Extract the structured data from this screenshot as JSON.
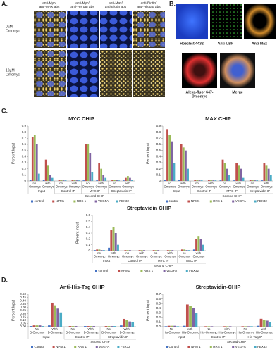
{
  "figure": {
    "panel_labels": [
      "A.",
      "B.",
      "C.",
      "D."
    ],
    "panel_a": {
      "columns": [
        [
          "anti-Myc/",
          "anti-MAX abs"
        ],
        [
          "anti-Myc/",
          "anti-His tag abs"
        ],
        [
          "anti-Max/",
          "anti-Biotin abs"
        ],
        [
          "anti-Biotin/",
          "anti-His tag abs"
        ]
      ],
      "rows": [
        [
          "0µM",
          "Omomyc"
        ],
        [
          "10µM",
          "Omomyc"
        ]
      ]
    },
    "panel_b": {
      "images": [
        [
          "Hoechst 4432"
        ],
        [
          "Anti-UBF"
        ],
        [
          "Anti-Max"
        ],
        [
          "Alexa-fluor 647-",
          "Omomyc"
        ],
        [
          "Merge"
        ]
      ]
    }
  },
  "chart_data": [
    {
      "type": "bar",
      "title": "MYC CHIP",
      "y_label": "Percent Input",
      "categories": [
        "no Omomyc",
        "with Omomyc",
        "no Omomyc",
        "with Omomyc",
        "no Omomyc",
        "with Omomyc",
        "no Omomyc",
        "with Omomyc"
      ],
      "groups": [
        "Input",
        "Control IP",
        "MAX IP",
        "Streptavidin IP"
      ],
      "group_title": "Second CHIP",
      "ylim": [
        0,
        0.9
      ],
      "yticks": [
        0,
        0.1,
        0.2,
        0.3,
        0.4,
        0.5,
        0.6,
        0.7,
        0.8,
        0.9
      ],
      "series": [
        {
          "name": "control",
          "color": "#4472c4",
          "values": [
            0.02,
            0.02,
            0,
            0,
            0.01,
            0.01,
            0,
            0.01
          ]
        },
        {
          "name": "NPM1",
          "color": "#c0504d",
          "values": [
            0.72,
            0.35,
            0.02,
            0.02,
            0.6,
            0.3,
            0.02,
            0.05
          ]
        },
        {
          "name": "RRS 1",
          "color": "#9bbb59",
          "values": [
            0.75,
            0.25,
            0.02,
            0.02,
            0.6,
            0.2,
            0.02,
            0.08
          ]
        },
        {
          "name": "VEGFA",
          "color": "#8064a2",
          "values": [
            0.6,
            0.1,
            0.01,
            0.01,
            0.45,
            0.1,
            0.02,
            0.05
          ]
        },
        {
          "name": "FBX32",
          "color": "#4bacc6",
          "values": [
            0.12,
            0.05,
            0.01,
            0.01,
            0.15,
            0.05,
            0.01,
            0.02
          ]
        }
      ]
    },
    {
      "type": "bar",
      "title": "MAX CHIP",
      "y_label": "Percent Input",
      "categories": [
        "no Omomyc",
        "with Omomyc",
        "no Omomyc",
        "with Omomyc",
        "no Omomyc",
        "with Omomyc",
        "no Omomyc",
        "with Omomyc"
      ],
      "groups": [
        "Input",
        "Control IP",
        "MYC IP",
        "Streptavidin IP"
      ],
      "group_title": "Second CHIP",
      "ylim": [
        0,
        0.9
      ],
      "yticks": [
        0,
        0.1,
        0.2,
        0.3,
        0.4,
        0.5,
        0.6,
        0.7,
        0.8,
        0.9
      ],
      "series": [
        {
          "name": "control",
          "color": "#4472c4",
          "values": [
            0.02,
            0.02,
            0,
            0,
            0.01,
            0.01,
            0,
            0.01
          ]
        },
        {
          "name": "NPM1",
          "color": "#c0504d",
          "values": [
            0.85,
            0.6,
            0.02,
            0.02,
            0.35,
            0.3,
            0.02,
            0.3
          ]
        },
        {
          "name": "RRS 1",
          "color": "#9bbb59",
          "values": [
            0.75,
            0.55,
            0.02,
            0.02,
            0.3,
            0.25,
            0.02,
            0.25
          ]
        },
        {
          "name": "VEGFA",
          "color": "#8064a2",
          "values": [
            0.65,
            0.5,
            0.01,
            0.01,
            0.2,
            0.2,
            0.01,
            0.2
          ]
        },
        {
          "name": "FBX32",
          "color": "#4bacc6",
          "values": [
            0.3,
            0.2,
            0.01,
            0.01,
            0.1,
            0.05,
            0.01,
            0.1
          ]
        }
      ]
    },
    {
      "type": "bar",
      "title": "Streptavidin CHIP",
      "y_label": "Percent Input",
      "categories": [
        "no Omomyc",
        "with Omomyc",
        "no Omomyc",
        "with Omomyc",
        "no Omomyc",
        "with Omomyc",
        "no Omomyc",
        "with Omomyc"
      ],
      "groups": [
        "Input",
        "Control IP",
        "MYC IP",
        "MAX IP"
      ],
      "group_title": "Second CHIP",
      "ylim": [
        0,
        0.6
      ],
      "yticks": [
        0,
        0.1,
        0.2,
        0.3,
        0.4,
        0.5,
        0.6
      ],
      "series": [
        {
          "name": "control",
          "color": "#4472c4",
          "values": [
            0.01,
            0.05,
            0,
            0,
            0,
            0,
            0,
            0.02
          ]
        },
        {
          "name": "NPM1",
          "color": "#c0504d",
          "values": [
            0.02,
            0.35,
            0.01,
            0.01,
            0.01,
            0.01,
            0.02,
            0.2
          ]
        },
        {
          "name": "RRS 1",
          "color": "#9bbb59",
          "values": [
            0.02,
            0.4,
            0.01,
            0.01,
            0.01,
            0.01,
            0.02,
            0.25
          ]
        },
        {
          "name": "VEGFA",
          "color": "#8064a2",
          "values": [
            0.01,
            0.3,
            0.01,
            0.01,
            0.01,
            0.01,
            0.01,
            0.2
          ]
        },
        {
          "name": "FBX32",
          "color": "#4bacc6",
          "values": [
            0.01,
            0.1,
            0,
            0,
            0,
            0,
            0.01,
            0.1
          ]
        }
      ]
    },
    {
      "type": "bar",
      "title": "Anti-His-Tag CHIP",
      "y_label": "Percent Input",
      "categories": [
        "No B-Omomyc",
        "With B-Omomyc",
        "No B-Omomyc",
        "With B-Omomyc",
        "No B-Omomyc",
        "With B-Omomyc"
      ],
      "groups": [
        "Input",
        "Control IP",
        "Streptavidin IP"
      ],
      "group_title": "Second CHIP",
      "ylim": [
        0,
        0.5
      ],
      "yticks": [
        {
          "value": 0,
          "label": "0.00"
        },
        {
          "value": 0.05,
          "label": "0.05"
        },
        {
          "value": 0.1,
          "label": "0.10"
        },
        {
          "value": 0.15,
          "label": "0.15"
        },
        {
          "value": 0.2,
          "label": "0.20"
        },
        {
          "value": 0.25,
          "label": "0.25"
        },
        {
          "value": 0.3,
          "label": "0.30"
        },
        {
          "value": 0.35,
          "label": "0.35"
        },
        {
          "value": 0.4,
          "label": "0.40"
        },
        {
          "value": 0.45,
          "label": "0.45"
        },
        {
          "value": 0.5,
          "label": "0.50"
        }
      ],
      "series": [
        {
          "name": "Control",
          "color": "#4472c4",
          "values": [
            0.01,
            0.02,
            0,
            0.01,
            0,
            0.02
          ]
        },
        {
          "name": "NPM 1",
          "color": "#c0504d",
          "values": [
            0.02,
            0.37,
            0.01,
            0.01,
            0.01,
            0.12
          ]
        },
        {
          "name": "RRS 1",
          "color": "#9bbb59",
          "values": [
            0.02,
            0.33,
            0.01,
            0.01,
            0.01,
            0.1
          ]
        },
        {
          "name": "VEGFA",
          "color": "#8064a2",
          "values": [
            0.02,
            0.28,
            0.01,
            0.01,
            0.01,
            0.08
          ]
        },
        {
          "name": "FBX32",
          "color": "#4bacc6",
          "values": [
            0.01,
            0.22,
            0,
            0,
            0.01,
            0.07
          ]
        }
      ]
    },
    {
      "type": "bar",
      "title": "Streptavidin-CHIP",
      "y_label": "Percent Input",
      "categories": [
        "No His-Omomyc",
        "with His-Omomyc",
        "No His-Omomyc",
        "with His-Omomyc",
        "No His-Omomyc",
        "with His-Omomyc"
      ],
      "groups": [
        "Input",
        "Control IP",
        "His-Tag IP"
      ],
      "group_title": "Second CHIP",
      "ylim": [
        0,
        0.7
      ],
      "yticks": [
        {
          "value": 0,
          "label": "0.0"
        },
        0.1,
        0.2,
        0.3,
        0.4,
        0.5,
        0.6,
        0.7
      ],
      "series": [
        {
          "name": "Control",
          "color": "#4472c4",
          "values": [
            0.01,
            0.02,
            0,
            0,
            0,
            0.02
          ]
        },
        {
          "name": "NPM 1",
          "color": "#c0504d",
          "values": [
            0.02,
            0.48,
            0.01,
            0.01,
            0.01,
            0.17
          ]
        },
        {
          "name": "RRS 1",
          "color": "#9bbb59",
          "values": [
            0.02,
            0.45,
            0.01,
            0.01,
            0.01,
            0.15
          ]
        },
        {
          "name": "VEGFA",
          "color": "#8064a2",
          "values": [
            0.02,
            0.4,
            0.01,
            0.01,
            0.01,
            0.13
          ]
        },
        {
          "name": "FBX32",
          "color": "#4bacc6",
          "values": [
            0.01,
            0.3,
            0,
            0,
            0.01,
            0.1
          ]
        }
      ]
    }
  ]
}
